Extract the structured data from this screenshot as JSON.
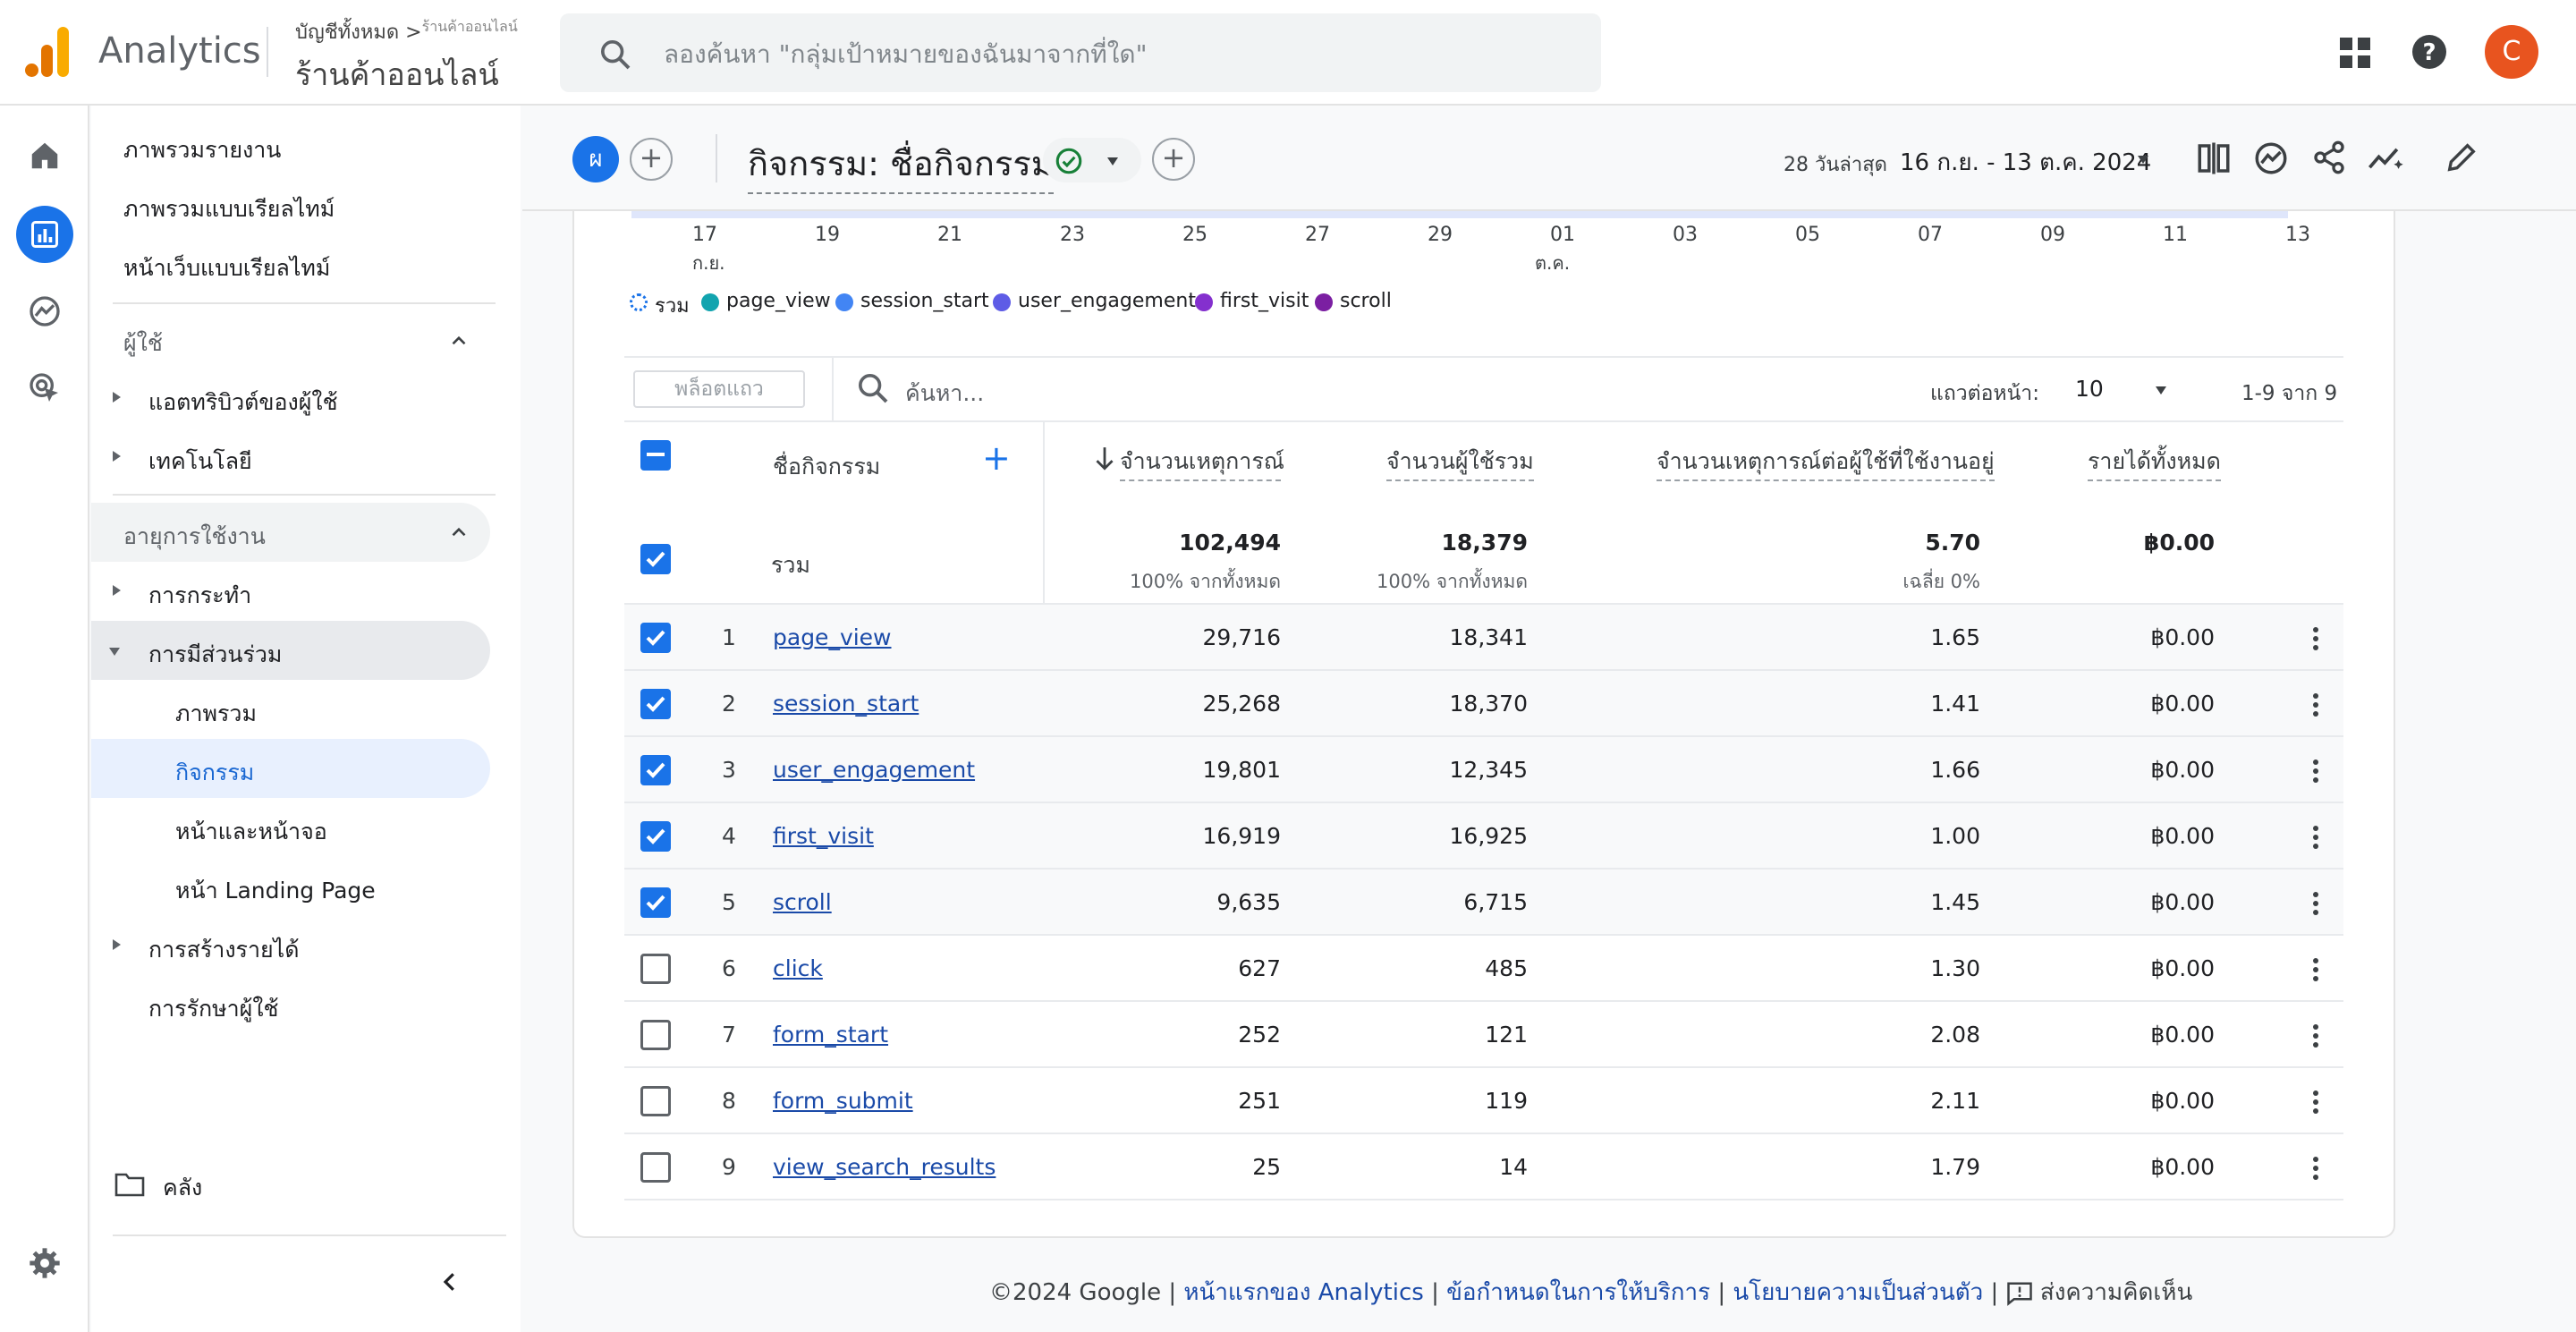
{
  "app": {
    "name": "Analytics",
    "account_line1": "บัญชีทั้งหมด >",
    "account_line1_tail": "ร้านค้าออนไลน์",
    "account_line2": "ร้านค้าออนไลน์",
    "search_placeholder": "ลองค้นหา \"กลุ่มเป้าหมายของฉันมาจากที่ใด\"",
    "avatar_letter": "C"
  },
  "nav": {
    "items": [
      "ภาพรวมรายงาน",
      "ภาพรวมแบบเรียลไทม์",
      "หน้าเว็บแบบเรียลไทม์"
    ],
    "users_section": "ผู้ใช้",
    "users_items": [
      "แอตทริบิวต์ของผู้ใช้",
      "เทคโนโลยี"
    ],
    "lifecycle_section": "อายุการใช้งาน",
    "acquisition": "การกระทำ",
    "engagement": "การมีส่วนร่วม",
    "engagement_sub": [
      "ภาพรวม",
      "กิจกรรม",
      "หน้าและหน้าจอ",
      "หน้า Landing Page"
    ],
    "monetization": "การสร้างรายได้",
    "retention": "การรักษาผู้ใช้",
    "library": "คลัง"
  },
  "header": {
    "segment_letter": "ผ",
    "title": "กิจกรรม: ชื่อกิจกรรม",
    "date_label": "28 วันล่าสุด",
    "date_range": "16 ก.ย. - 13 ต.ค. 2024"
  },
  "chart": {
    "x_ticks": [
      "17",
      "19",
      "21",
      "23",
      "25",
      "27",
      "29",
      "01",
      "03",
      "05",
      "07",
      "09",
      "11",
      "13"
    ],
    "month_sep": "ก.ย.",
    "month_oct": "ต.ค.",
    "legend": [
      {
        "name": "รวม",
        "color": "#1a73e8"
      },
      {
        "name": "page_view",
        "color": "#12a4af"
      },
      {
        "name": "session_start",
        "color": "#4285f4"
      },
      {
        "name": "user_engagement",
        "color": "#5e5ce6"
      },
      {
        "name": "first_visit",
        "color": "#8430ce"
      },
      {
        "name": "scroll",
        "color": "#7b1fa2"
      }
    ]
  },
  "table": {
    "plot_rows": "พล็อตแถว",
    "search_placeholder": "ค้นหา...",
    "rows_per_page_label": "แถวต่อหน้า:",
    "rows_per_page": "10",
    "pagination": "1-9 จาก 9",
    "headers": {
      "name": "ชื่อกิจกรรม",
      "events": "จำนวนเหตุการณ์",
      "users": "จำนวนผู้ใช้รวม",
      "per_user": "จำนวนเหตุการณ์ต่อผู้ใช้ที่ใช้งานอยู่",
      "revenue": "รายได้ทั้งหมด"
    },
    "total": {
      "label": "รวม",
      "events": "102,494",
      "events_sub": "100% จากทั้งหมด",
      "users": "18,379",
      "users_sub": "100% จากทั้งหมด",
      "per_user": "5.70",
      "per_user_sub": "เฉลี่ย 0%",
      "revenue": "฿0.00"
    },
    "rows": [
      {
        "n": "1",
        "name": "page_view",
        "events": "29,716",
        "users": "18,341",
        "per_user": "1.65",
        "revenue": "฿0.00",
        "checked": true
      },
      {
        "n": "2",
        "name": "session_start",
        "events": "25,268",
        "users": "18,370",
        "per_user": "1.41",
        "revenue": "฿0.00",
        "checked": true
      },
      {
        "n": "3",
        "name": "user_engagement",
        "events": "19,801",
        "users": "12,345",
        "per_user": "1.66",
        "revenue": "฿0.00",
        "checked": true
      },
      {
        "n": "4",
        "name": "first_visit",
        "events": "16,919",
        "users": "16,925",
        "per_user": "1.00",
        "revenue": "฿0.00",
        "checked": true
      },
      {
        "n": "5",
        "name": "scroll",
        "events": "9,635",
        "users": "6,715",
        "per_user": "1.45",
        "revenue": "฿0.00",
        "checked": true
      },
      {
        "n": "6",
        "name": "click",
        "events": "627",
        "users": "485",
        "per_user": "1.30",
        "revenue": "฿0.00",
        "checked": false
      },
      {
        "n": "7",
        "name": "form_start",
        "events": "252",
        "users": "121",
        "per_user": "2.08",
        "revenue": "฿0.00",
        "checked": false
      },
      {
        "n": "8",
        "name": "form_submit",
        "events": "251",
        "users": "119",
        "per_user": "2.11",
        "revenue": "฿0.00",
        "checked": false
      },
      {
        "n": "9",
        "name": "view_search_results",
        "events": "25",
        "users": "14",
        "per_user": "1.79",
        "revenue": "฿0.00",
        "checked": false
      }
    ]
  },
  "footer": {
    "copyright": "©2024 Google |",
    "home": "หน้าแรกของ Analytics",
    "sep": "|",
    "terms": "ข้อกำหนดในการให้บริการ",
    "privacy": "นโยบายความเป็นส่วนตัว",
    "sep2": "|",
    "feedback": "ส่งความคิดเห็น"
  }
}
